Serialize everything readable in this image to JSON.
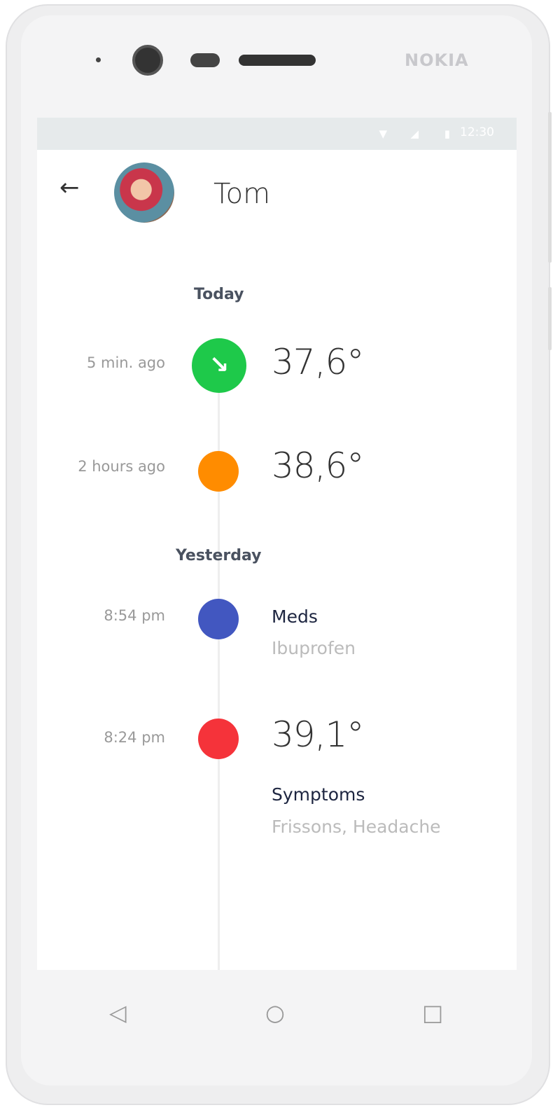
{
  "device": {
    "brand": "NOKIA"
  },
  "status_bar": {
    "time": "12:30",
    "icons": [
      "wifi-icon",
      "signal-icon",
      "battery-icon"
    ]
  },
  "header": {
    "name": "Tom",
    "back_icon": "arrow-left-icon"
  },
  "sections": [
    {
      "title": "Today",
      "entries": [
        {
          "time": "5 min. ago",
          "temperature": "37,6°",
          "color": "#1ec94a",
          "icon": "arrow-down-right-icon"
        },
        {
          "time": "2 hours ago",
          "temperature": "38,6°",
          "color": "#ff8c00"
        }
      ]
    },
    {
      "title": "Yesterday",
      "entries": [
        {
          "time": "8:54 pm",
          "label": "Meds",
          "detail": "Ibuprofen",
          "color": "#4257c0"
        },
        {
          "time": "8:24 pm",
          "temperature": "39,1°",
          "label": "Symptoms",
          "detail": "Frissons,  Headache",
          "color": "#f5333a"
        }
      ]
    }
  ],
  "nav": {
    "back": "◁",
    "home": "○",
    "recents": "□"
  }
}
